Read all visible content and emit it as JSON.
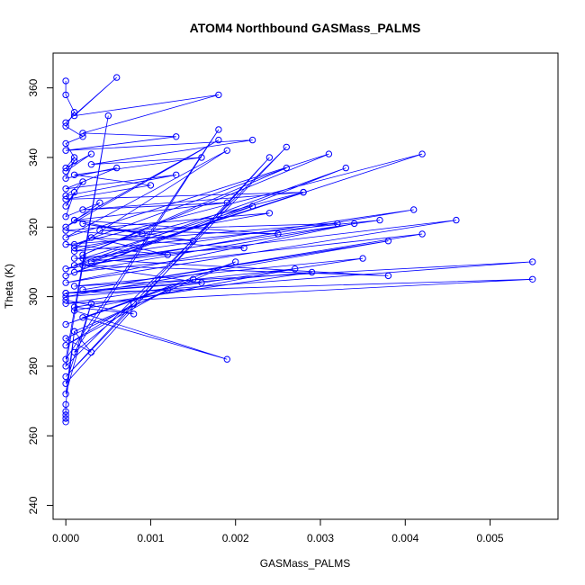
{
  "chart_data": {
    "type": "line",
    "title": "ATOM4 Northbound GASMass_PALMS",
    "xlabel": "GASMass_PALMS",
    "ylabel": "Theta (K)",
    "xlim": [
      -0.00015,
      0.0058
    ],
    "ylim": [
      236,
      370
    ],
    "xticks": [
      0.0,
      0.001,
      0.002,
      0.003,
      0.004,
      0.005
    ],
    "xtick_labels": [
      "0.000",
      "0.001",
      "0.002",
      "0.003",
      "0.004",
      "0.005"
    ],
    "yticks": [
      240,
      260,
      280,
      300,
      320,
      340,
      360
    ],
    "ytick_labels": [
      "240",
      "260",
      "280",
      "300",
      "320",
      "340",
      "360"
    ],
    "grid": false,
    "legend": "none",
    "marker": "open-circle",
    "series_color": "#0000ff",
    "series": [
      {
        "x": [
          0.0,
          0.0,
          0.0001,
          0.0,
          0.0002,
          0.0,
          0.0001,
          0.0,
          0.0003,
          0.0,
          0.0001,
          0.0,
          0.0006,
          0.0,
          0.0013,
          0.0,
          0.0002,
          0.0,
          0.0001,
          0.0,
          0.0004,
          0.0,
          0.0018,
          0.0001,
          0.0009,
          0.0002,
          0.0015,
          0.0,
          0.0024,
          0.0001,
          0.0019,
          0.0,
          0.0031,
          0.0002,
          0.0026,
          0.0001,
          0.0042,
          0.0003,
          0.0037,
          0.0001,
          0.0028,
          0.0,
          0.0041,
          0.0002,
          0.0022,
          0.0,
          0.0033,
          0.0001,
          0.0046,
          0.0,
          0.0034,
          0.0001,
          0.0042,
          0.0002,
          0.0038,
          0.0,
          0.0055,
          0.0001,
          0.0035,
          0.0,
          0.0055,
          0.0,
          0.0027,
          0.0001,
          0.0019,
          0.0002,
          0.0015,
          0.0,
          0.002,
          0.0001,
          0.0003,
          0.0,
          0.0012,
          0.0,
          0.0008,
          0.0001,
          0.0018,
          0.0,
          0.0005,
          0.0,
          0.0026,
          0.0,
          0.0024,
          0.0,
          0.0003,
          0.0,
          0.0001,
          0.0,
          0.0,
          0.0,
          0.0,
          0.0
        ],
        "y": [
          362,
          358,
          353,
          349,
          346,
          344,
          340,
          337,
          341,
          336,
          339,
          334,
          337,
          331,
          335,
          329,
          333,
          326,
          330,
          323,
          327,
          320,
          345,
          322,
          318,
          321,
          316,
          319,
          324,
          314,
          342,
          317,
          341,
          312,
          337,
          315,
          341,
          310,
          322,
          313,
          330,
          308,
          325,
          311,
          326,
          306,
          337,
          309,
          322,
          304,
          321,
          307,
          318,
          302,
          316,
          300,
          310,
          303,
          311,
          298,
          305,
          301,
          308,
          296,
          282,
          294,
          305,
          292,
          310,
          290,
          284,
          288,
          302,
          286,
          298,
          284,
          348,
          282,
          352,
          280,
          343,
          277,
          340,
          275,
          298,
          272,
          290,
          269,
          267,
          266,
          265,
          264
        ]
      },
      {
        "x": [
          0.0,
          0.0006,
          0.0001,
          0.0018,
          0.0002,
          0.0013,
          0.0,
          0.0022,
          0.0003,
          0.0016,
          0.0001,
          0.001,
          0.0,
          0.0028,
          0.0002,
          0.0019,
          0.0001,
          0.0025,
          0.0004,
          0.0032,
          0.0,
          0.0012,
          0.0003,
          0.0021,
          0.0001,
          0.0038,
          0.0002,
          0.0016,
          0.0,
          0.0029,
          0.0001,
          0.0008,
          0.0
        ],
        "y": [
          350,
          363,
          352,
          358,
          347,
          346,
          342,
          345,
          338,
          340,
          335,
          332,
          328,
          330,
          325,
          327,
          322,
          318,
          319,
          321,
          315,
          312,
          317,
          314,
          311,
          306,
          309,
          304,
          301,
          307,
          297,
          295,
          299
        ]
      }
    ]
  }
}
